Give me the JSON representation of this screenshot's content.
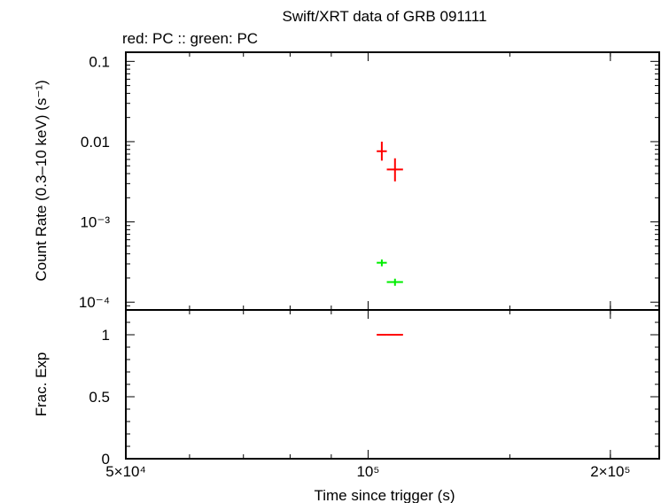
{
  "chart_data": [
    {
      "type": "scatter",
      "title": "Swift/XRT data of GRB 091111",
      "subtitle": "red: PC  :: green: PC",
      "ylabel": "Count Rate (0.3–10 keV) (s⁻¹)",
      "xscale": "log",
      "yscale": "log",
      "xlim": [
        50000,
        230000
      ],
      "ylim": [
        8e-05,
        0.13
      ],
      "ytick_labels": [
        "0.1",
        "0.01",
        "10⁻³",
        "10⁻⁴"
      ],
      "series": [
        {
          "color": "#ff0000",
          "points": [
            {
              "x": 104000,
              "y": 0.0076,
              "xerr": [
                102500,
                105500
              ],
              "yerr": [
                0.0058,
                0.01
              ]
            },
            {
              "x": 108000,
              "y": 0.0045,
              "xerr": [
                105500,
                110500
              ],
              "yerr": [
                0.0032,
                0.0062
              ]
            }
          ]
        },
        {
          "color": "#00ee00",
          "points": [
            {
              "x": 104000,
              "y": 0.00031,
              "xerr": [
                102500,
                105500
              ],
              "yerr": [
                0.00028,
                0.00034
              ]
            },
            {
              "x": 108000,
              "y": 0.000178,
              "xerr": [
                105500,
                110500
              ],
              "yerr": [
                0.00016,
                0.000196
              ]
            }
          ]
        }
      ]
    },
    {
      "type": "scatter",
      "ylabel": "Frac. Exp",
      "xlabel": "Time since trigger (s)",
      "xscale": "log",
      "xlim": [
        50000,
        230000
      ],
      "ylim": [
        0,
        1.2
      ],
      "ytick_labels": [
        "1",
        "0.5",
        "0"
      ],
      "xtick_labels": [
        "5×10⁴",
        "10⁵",
        "2×10⁵"
      ],
      "series": [
        {
          "color": "#ff0000",
          "points": [
            {
              "x": 104000,
              "y": 1.0,
              "xerr": [
                102500,
                105500
              ]
            },
            {
              "x": 108000,
              "y": 1.0,
              "xerr": [
                105500,
                110500
              ]
            }
          ]
        }
      ]
    }
  ]
}
